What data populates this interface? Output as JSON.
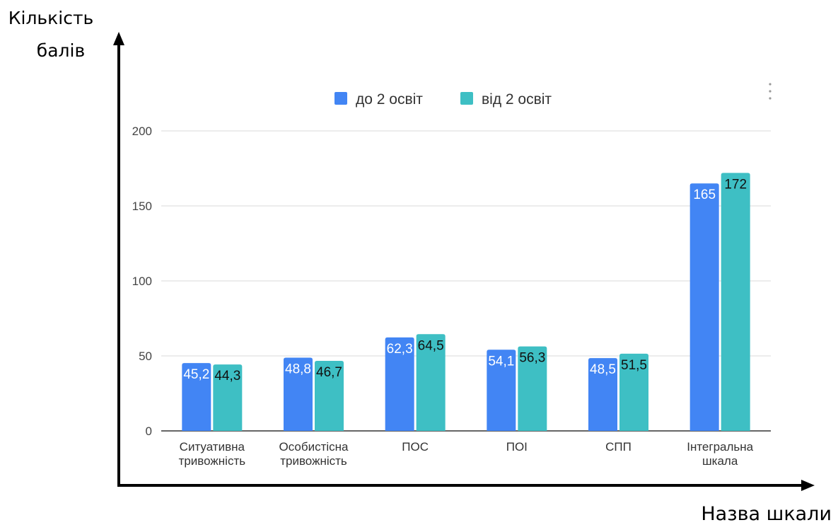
{
  "chart_data": {
    "type": "bar",
    "ylabel_lines": [
      "Кількість",
      "балів"
    ],
    "xlabel": "Назва шкали",
    "categories": [
      [
        "Ситуативна",
        "тривожність"
      ],
      [
        "Особистісна",
        "тривожність"
      ],
      [
        "ПОС"
      ],
      [
        "ПОІ"
      ],
      [
        "СПП"
      ],
      [
        "Інтегральна",
        "шкала"
      ]
    ],
    "series": [
      {
        "name": "до 2 освіт",
        "color": "#4285f4",
        "label_color": "#ffffff",
        "values": [
          45.2,
          48.8,
          62.3,
          54.1,
          48.5,
          165
        ],
        "labels": [
          "45,2",
          "48,8",
          "62,3",
          "54,1",
          "48,5",
          "165"
        ]
      },
      {
        "name": "від 2 освіт",
        "color": "#3ebfc4",
        "label_color": "#111111",
        "values": [
          44.3,
          46.7,
          64.5,
          56.3,
          51.5,
          172
        ],
        "labels": [
          "44,3",
          "46,7",
          "64,5",
          "56,3",
          "51,5",
          "172"
        ]
      }
    ],
    "yticks": [
      0,
      50,
      100,
      150,
      200
    ],
    "ylim": [
      0,
      200
    ],
    "grid": true,
    "legend_position": "top-center",
    "gridline_color": "#d9d9d9"
  }
}
